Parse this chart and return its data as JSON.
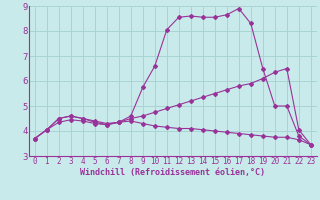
{
  "xlabel": "Windchill (Refroidissement éolien,°C)",
  "background_color": "#c8eaea",
  "line_color": "#993399",
  "grid_color": "#aad4d4",
  "xlim": [
    -0.5,
    23.5
  ],
  "ylim": [
    3,
    9
  ],
  "xticks": [
    0,
    1,
    2,
    3,
    4,
    5,
    6,
    7,
    8,
    9,
    10,
    11,
    12,
    13,
    14,
    15,
    16,
    17,
    18,
    19,
    20,
    21,
    22,
    23
  ],
  "yticks": [
    3,
    4,
    5,
    6,
    7,
    8,
    9
  ],
  "series1_x": [
    0,
    1,
    2,
    3,
    4,
    5,
    6,
    7,
    8,
    9,
    10,
    11,
    12,
    13,
    14,
    15,
    16,
    17,
    18,
    19,
    20,
    21,
    22,
    23
  ],
  "series1_y": [
    3.7,
    4.05,
    4.5,
    4.6,
    4.5,
    4.4,
    4.3,
    4.35,
    4.6,
    5.75,
    6.6,
    8.05,
    8.55,
    8.6,
    8.55,
    8.55,
    8.65,
    8.9,
    8.3,
    6.5,
    5.0,
    5.0,
    3.8,
    3.45
  ],
  "series2_x": [
    0,
    1,
    2,
    3,
    4,
    5,
    6,
    7,
    8,
    9,
    10,
    11,
    12,
    13,
    14,
    15,
    16,
    17,
    18,
    19,
    20,
    21,
    22,
    23
  ],
  "series2_y": [
    3.7,
    4.05,
    4.35,
    4.45,
    4.4,
    4.3,
    4.25,
    4.35,
    4.5,
    4.6,
    4.75,
    4.9,
    5.05,
    5.2,
    5.35,
    5.5,
    5.65,
    5.8,
    5.9,
    6.1,
    6.35,
    6.5,
    4.05,
    3.45
  ],
  "series3_x": [
    0,
    1,
    2,
    3,
    4,
    5,
    6,
    7,
    8,
    9,
    10,
    11,
    12,
    13,
    14,
    15,
    16,
    17,
    18,
    19,
    20,
    21,
    22,
    23
  ],
  "series3_y": [
    3.7,
    4.05,
    4.5,
    4.6,
    4.5,
    4.35,
    4.25,
    4.35,
    4.4,
    4.3,
    4.2,
    4.15,
    4.1,
    4.1,
    4.05,
    4.0,
    3.95,
    3.9,
    3.85,
    3.8,
    3.75,
    3.75,
    3.65,
    3.45
  ],
  "tick_fontsize": 5.5,
  "xlabel_fontsize": 6.0
}
